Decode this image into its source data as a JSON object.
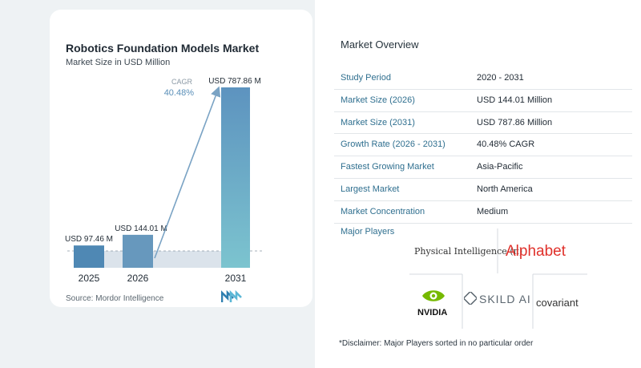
{
  "colors": {
    "bar_2025": "#4f88b4",
    "bar_2026": "#6798bd",
    "bar_2031_top": "#5d93bf",
    "bar_2031_bottom": "#7cc4cf",
    "cagr_arrow": "#7aa3c4",
    "band": "#dbe3eb",
    "label_accent": "#2f6f8f"
  },
  "chart_data": {
    "type": "bar",
    "title": "Robotics Foundation Models Market",
    "subtitle": "Market Size in USD Million",
    "categories": [
      "2025",
      "2026",
      "2031"
    ],
    "values": [
      97.46,
      144.01,
      787.86
    ],
    "value_labels": [
      "USD 97.46 M",
      "USD 144.01 M",
      "USD 787.86 M"
    ],
    "cagr": {
      "label": "CAGR",
      "value": "40.48%"
    },
    "ylim": [
      0,
      787.86
    ],
    "grid": false,
    "legend": "none"
  },
  "source_text": "Source: Mordor Intelligence",
  "overview": {
    "title": "Market Overview",
    "rows": [
      {
        "label": "Study Period",
        "value": "2020 - 2031"
      },
      {
        "label": "Market Size (2026)",
        "value": "USD 144.01 Million"
      },
      {
        "label": "Market Size (2031)",
        "value": "USD 787.86 Million"
      },
      {
        "label": "Growth Rate (2026 - 2031)",
        "value": "40.48% CAGR"
      },
      {
        "label": "Fastest Growing Market",
        "value": "Asia-Pacific"
      },
      {
        "label": "Largest Market",
        "value": "North America"
      },
      {
        "label": "Market Concentration",
        "value": "Medium"
      }
    ]
  },
  "players": {
    "title": "Major Players",
    "names": [
      "Physical Intelligence (π)",
      "Alphabet",
      "NVIDIA",
      "SKILD AI",
      "covariant"
    ]
  },
  "disclaimer": "*Disclaimer: Major Players sorted in no particular order"
}
